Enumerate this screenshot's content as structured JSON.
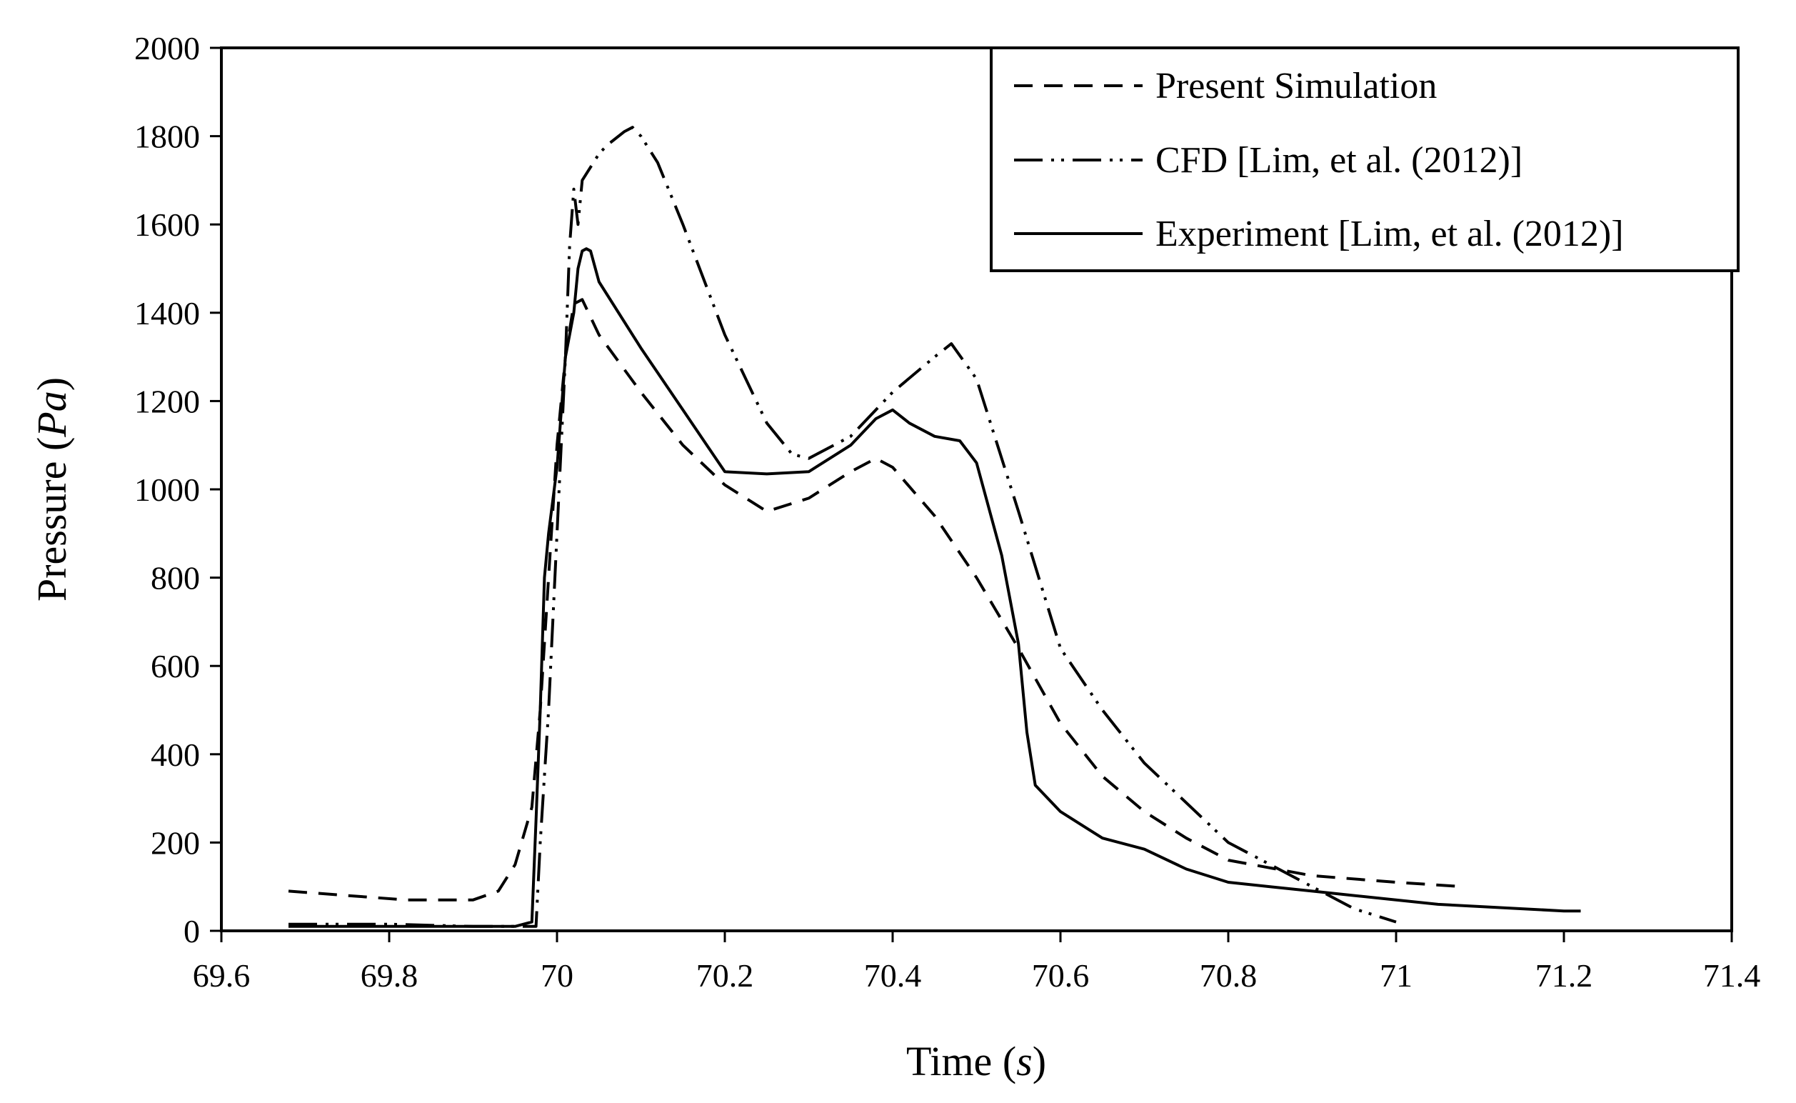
{
  "chart_data": {
    "type": "line",
    "title": "",
    "xlabel": "Time",
    "xlabel_unit": "s",
    "ylabel": "Pressure",
    "ylabel_unit": "Pa",
    "xlim": [
      69.6,
      71.4
    ],
    "ylim": [
      0,
      2000
    ],
    "x_ticks": [
      "69.6",
      "69.8",
      "70",
      "70.2",
      "70.4",
      "70.6",
      "70.8",
      "71",
      "71.2",
      "71.4"
    ],
    "y_ticks": [
      "0",
      "200",
      "400",
      "600",
      "800",
      "1000",
      "1200",
      "1400",
      "1600",
      "1800",
      "2000"
    ],
    "grid": false,
    "legend_position": "top-right",
    "series": [
      {
        "name": "Present Simulation",
        "style": "dashed",
        "x": [
          69.68,
          69.75,
          69.82,
          69.9,
          69.93,
          69.95,
          69.97,
          69.98,
          69.99,
          70.0,
          70.01,
          70.02,
          70.03,
          70.05,
          70.1,
          70.15,
          70.2,
          70.25,
          70.3,
          70.35,
          70.38,
          70.4,
          70.45,
          70.5,
          70.55,
          70.6,
          70.65,
          70.7,
          70.75,
          70.8,
          70.9,
          71.0,
          71.08
        ],
        "y": [
          90,
          80,
          70,
          70,
          90,
          150,
          280,
          500,
          800,
          1100,
          1300,
          1420,
          1430,
          1350,
          1220,
          1100,
          1010,
          950,
          980,
          1040,
          1070,
          1050,
          940,
          800,
          640,
          470,
          350,
          270,
          210,
          160,
          125,
          110,
          100
        ]
      },
      {
        "name": "CFD [Lim, et al. (2012)]",
        "style": "dash-dot-dot",
        "x": [
          69.68,
          69.8,
          69.9,
          69.975,
          69.98,
          69.99,
          70.0,
          70.01,
          70.015,
          70.02,
          70.025,
          70.03,
          70.04,
          70.05,
          70.06,
          70.08,
          70.09,
          70.1,
          70.12,
          70.15,
          70.2,
          70.25,
          70.28,
          70.3,
          70.35,
          70.4,
          70.45,
          70.47,
          70.5,
          70.55,
          70.6,
          70.65,
          70.7,
          70.8,
          70.9,
          70.95,
          71.0
        ],
        "y": [
          15,
          15,
          10,
          10,
          200,
          500,
          900,
          1300,
          1550,
          1680,
          1600,
          1700,
          1730,
          1760,
          1780,
          1810,
          1820,
          1800,
          1740,
          1600,
          1350,
          1150,
          1080,
          1070,
          1120,
          1220,
          1300,
          1330,
          1250,
          950,
          640,
          500,
          380,
          200,
          100,
          50,
          20
        ]
      },
      {
        "name": "Experiment [Lim, et al. (2012)]",
        "style": "solid",
        "x": [
          69.68,
          69.8,
          69.9,
          69.95,
          69.97,
          69.975,
          69.98,
          69.985,
          69.99,
          70.0,
          70.01,
          70.02,
          70.025,
          70.03,
          70.035,
          70.04,
          70.05,
          70.1,
          70.15,
          70.2,
          70.25,
          70.3,
          70.35,
          70.38,
          70.4,
          70.42,
          70.45,
          70.48,
          70.5,
          70.53,
          70.55,
          70.56,
          70.57,
          70.6,
          70.65,
          70.7,
          70.75,
          70.8,
          70.85,
          70.9,
          70.95,
          71.0,
          71.05,
          71.1,
          71.15,
          71.2,
          71.22
        ],
        "y": [
          10,
          10,
          10,
          10,
          20,
          250,
          500,
          800,
          900,
          1050,
          1300,
          1400,
          1500,
          1540,
          1545,
          1540,
          1470,
          1320,
          1180,
          1040,
          1035,
          1040,
          1100,
          1160,
          1180,
          1150,
          1120,
          1110,
          1060,
          850,
          650,
          450,
          330,
          270,
          210,
          185,
          140,
          110,
          100,
          90,
          80,
          70,
          60,
          55,
          50,
          45,
          45
        ]
      }
    ]
  }
}
